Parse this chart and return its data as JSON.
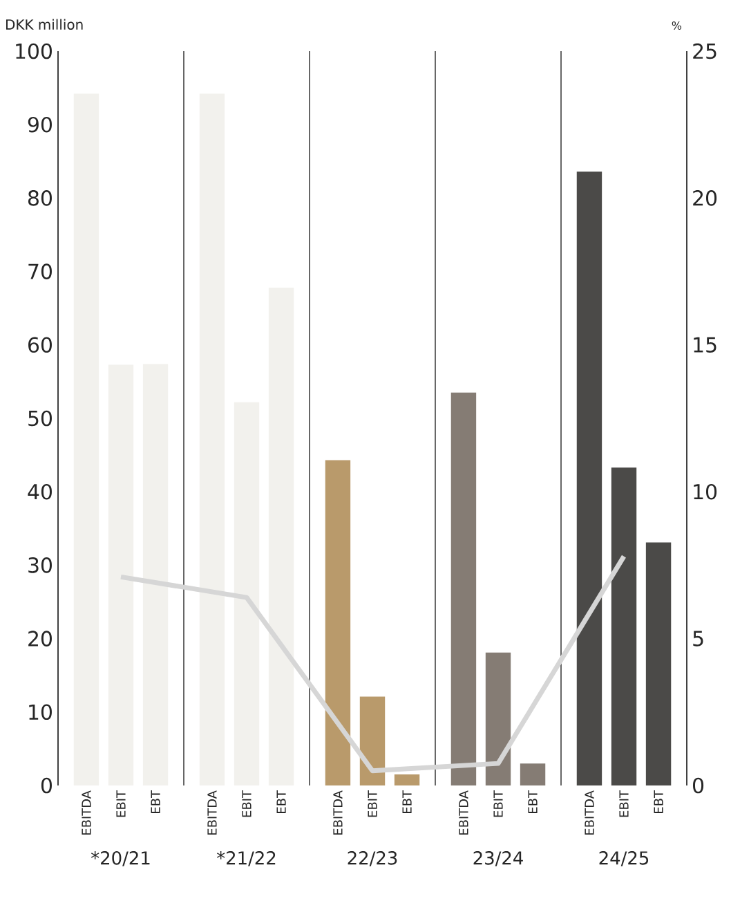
{
  "chart_data": {
    "type": "bar",
    "ylabel": "DKK million",
    "y2label": "%",
    "categories": [
      "*20/21",
      "*21/22",
      "22/23",
      "23/24",
      "24/25"
    ],
    "series": [
      {
        "name": "EBITDA",
        "colors": [
          "#f2f1ed",
          "#f2f1ed",
          "#b99a6b",
          "#857c74",
          "#4b4a48"
        ],
        "values": [
          94.2,
          94.2,
          44.3,
          53.5,
          83.6
        ]
      },
      {
        "name": "EBIT",
        "colors": [
          "#f2f1ed",
          "#f2f1ed",
          "#b99a6b",
          "#857c74",
          "#4b4a48"
        ],
        "values": [
          57.3,
          52.2,
          12.1,
          18.1,
          43.3
        ]
      },
      {
        "name": "EBT",
        "colors": [
          "#f2f1ed",
          "#f2f1ed",
          "#b99a6b",
          "#857c74",
          "#4b4a48"
        ],
        "values": [
          57.4,
          67.8,
          1.5,
          3.0,
          33.1
        ]
      },
      {
        "type": "line",
        "axis": "y2",
        "color": "#d6d6d6",
        "values": [
          7.1,
          6.4,
          0.5,
          0.75,
          7.8
        ]
      }
    ],
    "ylim": [
      0,
      100
    ],
    "yticks": [
      0,
      10,
      20,
      30,
      40,
      50,
      60,
      70,
      80,
      90,
      100
    ],
    "y2lim": [
      0,
      25
    ],
    "y2ticks": [
      0,
      5,
      10,
      15,
      20,
      25
    ]
  }
}
